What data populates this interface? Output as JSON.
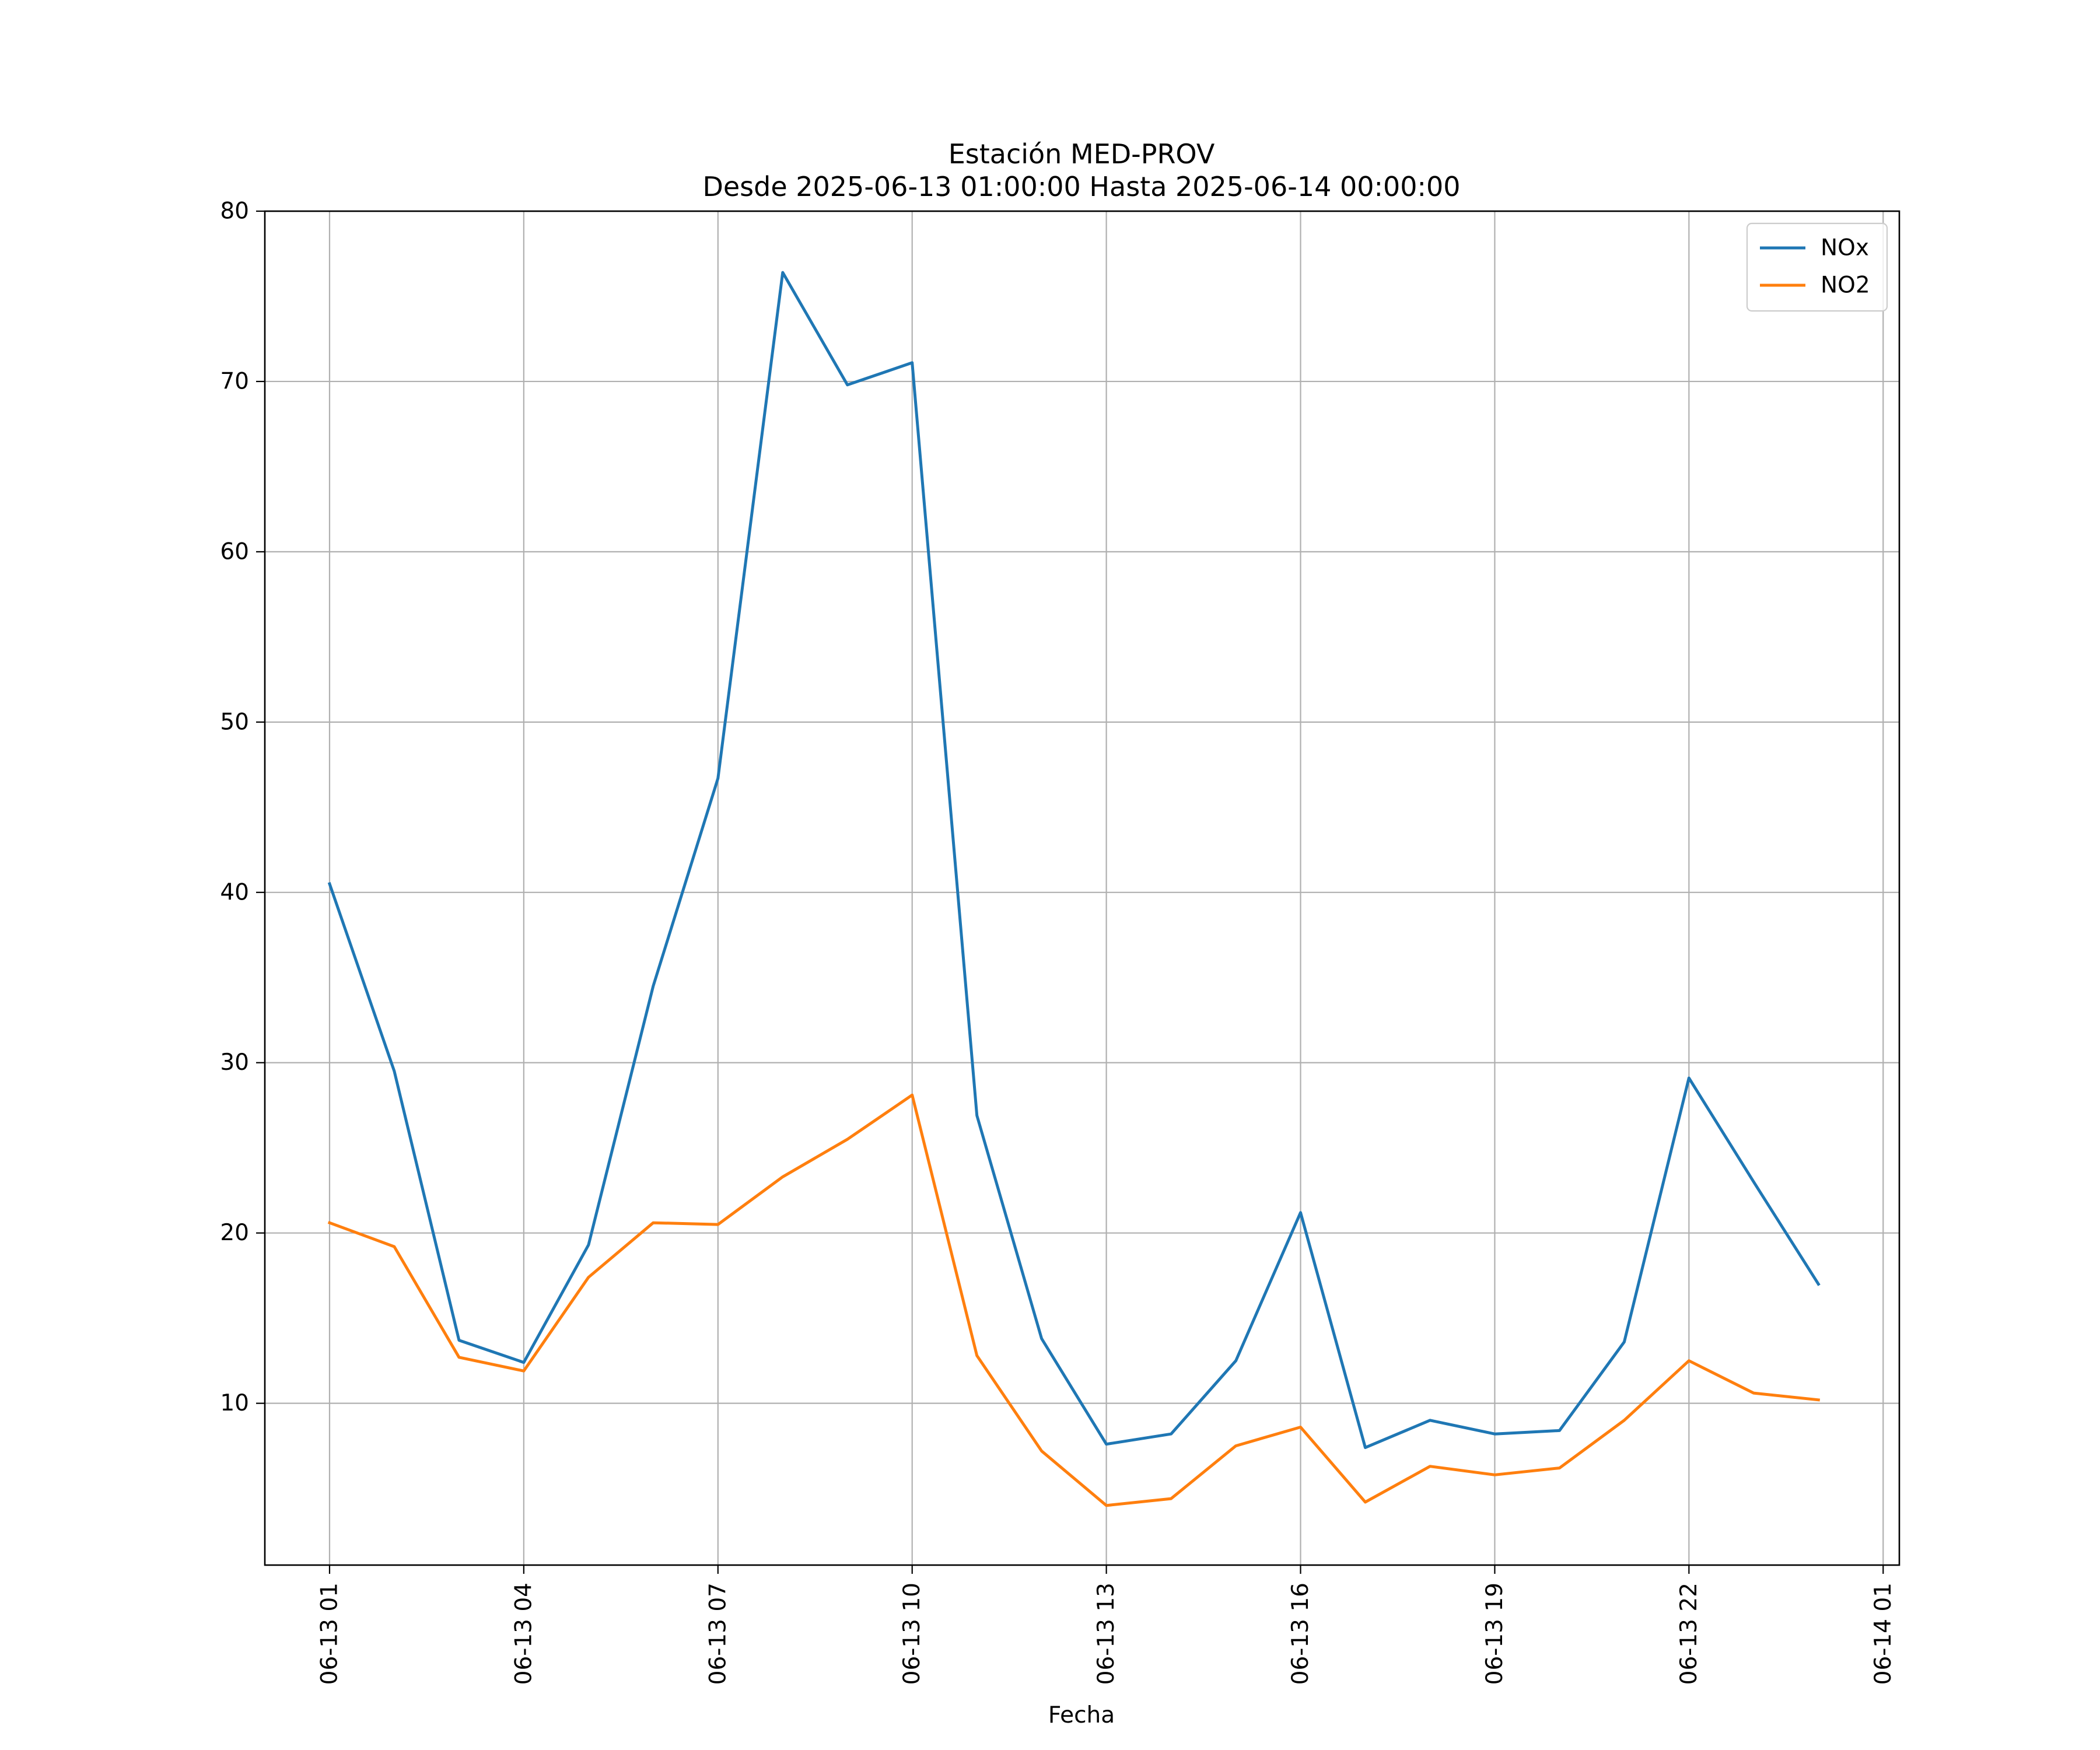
{
  "chart_data": {
    "type": "line",
    "title": "Estación MED-PROV",
    "subtitle": "Desde 2025-06-13 01:00:00 Hasta 2025-06-14 00:00:00",
    "xlabel": "Fecha",
    "ylabel": "",
    "x": [
      "2025-06-13 01:00",
      "2025-06-13 02:00",
      "2025-06-13 03:00",
      "2025-06-13 04:00",
      "2025-06-13 05:00",
      "2025-06-13 06:00",
      "2025-06-13 07:00",
      "2025-06-13 08:00",
      "2025-06-13 09:00",
      "2025-06-13 10:00",
      "2025-06-13 11:00",
      "2025-06-13 12:00",
      "2025-06-13 13:00",
      "2025-06-13 14:00",
      "2025-06-13 15:00",
      "2025-06-13 16:00",
      "2025-06-13 17:00",
      "2025-06-13 18:00",
      "2025-06-13 19:00",
      "2025-06-13 20:00",
      "2025-06-13 21:00",
      "2025-06-13 22:00",
      "2025-06-13 23:00",
      "2025-06-14 00:00"
    ],
    "xlim": [
      "2025-06-13 00:00",
      "2025-06-14 01:15"
    ],
    "ylim": [
      0.5,
      80
    ],
    "x_ticks": [
      {
        "value": "2025-06-13 01:00",
        "label": "06-13 01"
      },
      {
        "value": "2025-06-13 04:00",
        "label": "06-13 04"
      },
      {
        "value": "2025-06-13 07:00",
        "label": "06-13 07"
      },
      {
        "value": "2025-06-13 10:00",
        "label": "06-13 10"
      },
      {
        "value": "2025-06-13 13:00",
        "label": "06-13 13"
      },
      {
        "value": "2025-06-13 16:00",
        "label": "06-13 16"
      },
      {
        "value": "2025-06-13 19:00",
        "label": "06-13 19"
      },
      {
        "value": "2025-06-13 22:00",
        "label": "06-13 22"
      },
      {
        "value": "2025-06-14 01:00",
        "label": "06-14 01"
      }
    ],
    "y_ticks": [
      {
        "value": 10,
        "label": "10"
      },
      {
        "value": 20,
        "label": "20"
      },
      {
        "value": 30,
        "label": "30"
      },
      {
        "value": 40,
        "label": "40"
      },
      {
        "value": 50,
        "label": "50"
      },
      {
        "value": 60,
        "label": "60"
      },
      {
        "value": 70,
        "label": "70"
      },
      {
        "value": 80,
        "label": "80"
      }
    ],
    "grid": true,
    "legend_position": "top-right",
    "series": [
      {
        "name": "NOx",
        "color": "#1f77b4",
        "values": [
          40.5,
          29.5,
          13.7,
          12.4,
          19.3,
          34.5,
          46.7,
          76.4,
          69.8,
          71.1,
          26.9,
          13.8,
          7.6,
          8.2,
          12.5,
          21.2,
          7.4,
          9.0,
          8.2,
          8.4,
          13.6,
          29.1,
          23.0,
          17.0
        ]
      },
      {
        "name": "NO2",
        "color": "#ff7f0e",
        "values": [
          20.6,
          19.2,
          12.7,
          11.9,
          17.4,
          20.6,
          20.5,
          23.3,
          25.5,
          28.1,
          12.8,
          7.2,
          4.0,
          4.4,
          7.5,
          8.6,
          4.2,
          6.3,
          5.8,
          6.2,
          9.0,
          12.5,
          10.6,
          10.2
        ]
      }
    ]
  }
}
